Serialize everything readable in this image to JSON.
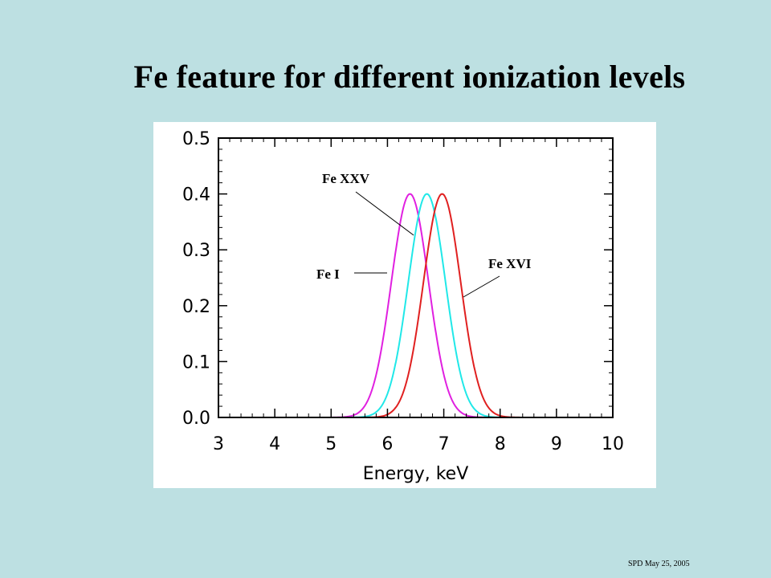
{
  "slide": {
    "title": "Fe feature for different ionization levels",
    "footer": "SPD May 25, 2005"
  },
  "chart_data": {
    "type": "line",
    "xlabel": "Energy, keV",
    "ylabel": "",
    "xlim": [
      3,
      10
    ],
    "ylim": [
      0,
      0.5
    ],
    "x_ticks": [
      "3",
      "4",
      "5",
      "6",
      "7",
      "8",
      "9",
      "10"
    ],
    "y_ticks": [
      "0.0",
      "0.1",
      "0.2",
      "0.3",
      "0.4",
      "0.5"
    ],
    "grid": false,
    "series": [
      {
        "name": "Fe I",
        "color": "#e020e0",
        "peak_energy": 6.4,
        "peak_value": 0.4,
        "sigma": 0.33
      },
      {
        "name": "Fe XXV",
        "color": "#20e8e8",
        "peak_energy": 6.7,
        "peak_value": 0.4,
        "sigma": 0.33
      },
      {
        "name": "Fe XVI",
        "color": "#e02020",
        "peak_energy": 6.97,
        "peak_value": 0.4,
        "sigma": 0.33
      }
    ],
    "annotations": [
      {
        "text": "Fe XXV",
        "points_to": 1
      },
      {
        "text": "Fe I",
        "points_to": 0
      },
      {
        "text": "Fe XVI",
        "points_to": 2
      }
    ]
  }
}
